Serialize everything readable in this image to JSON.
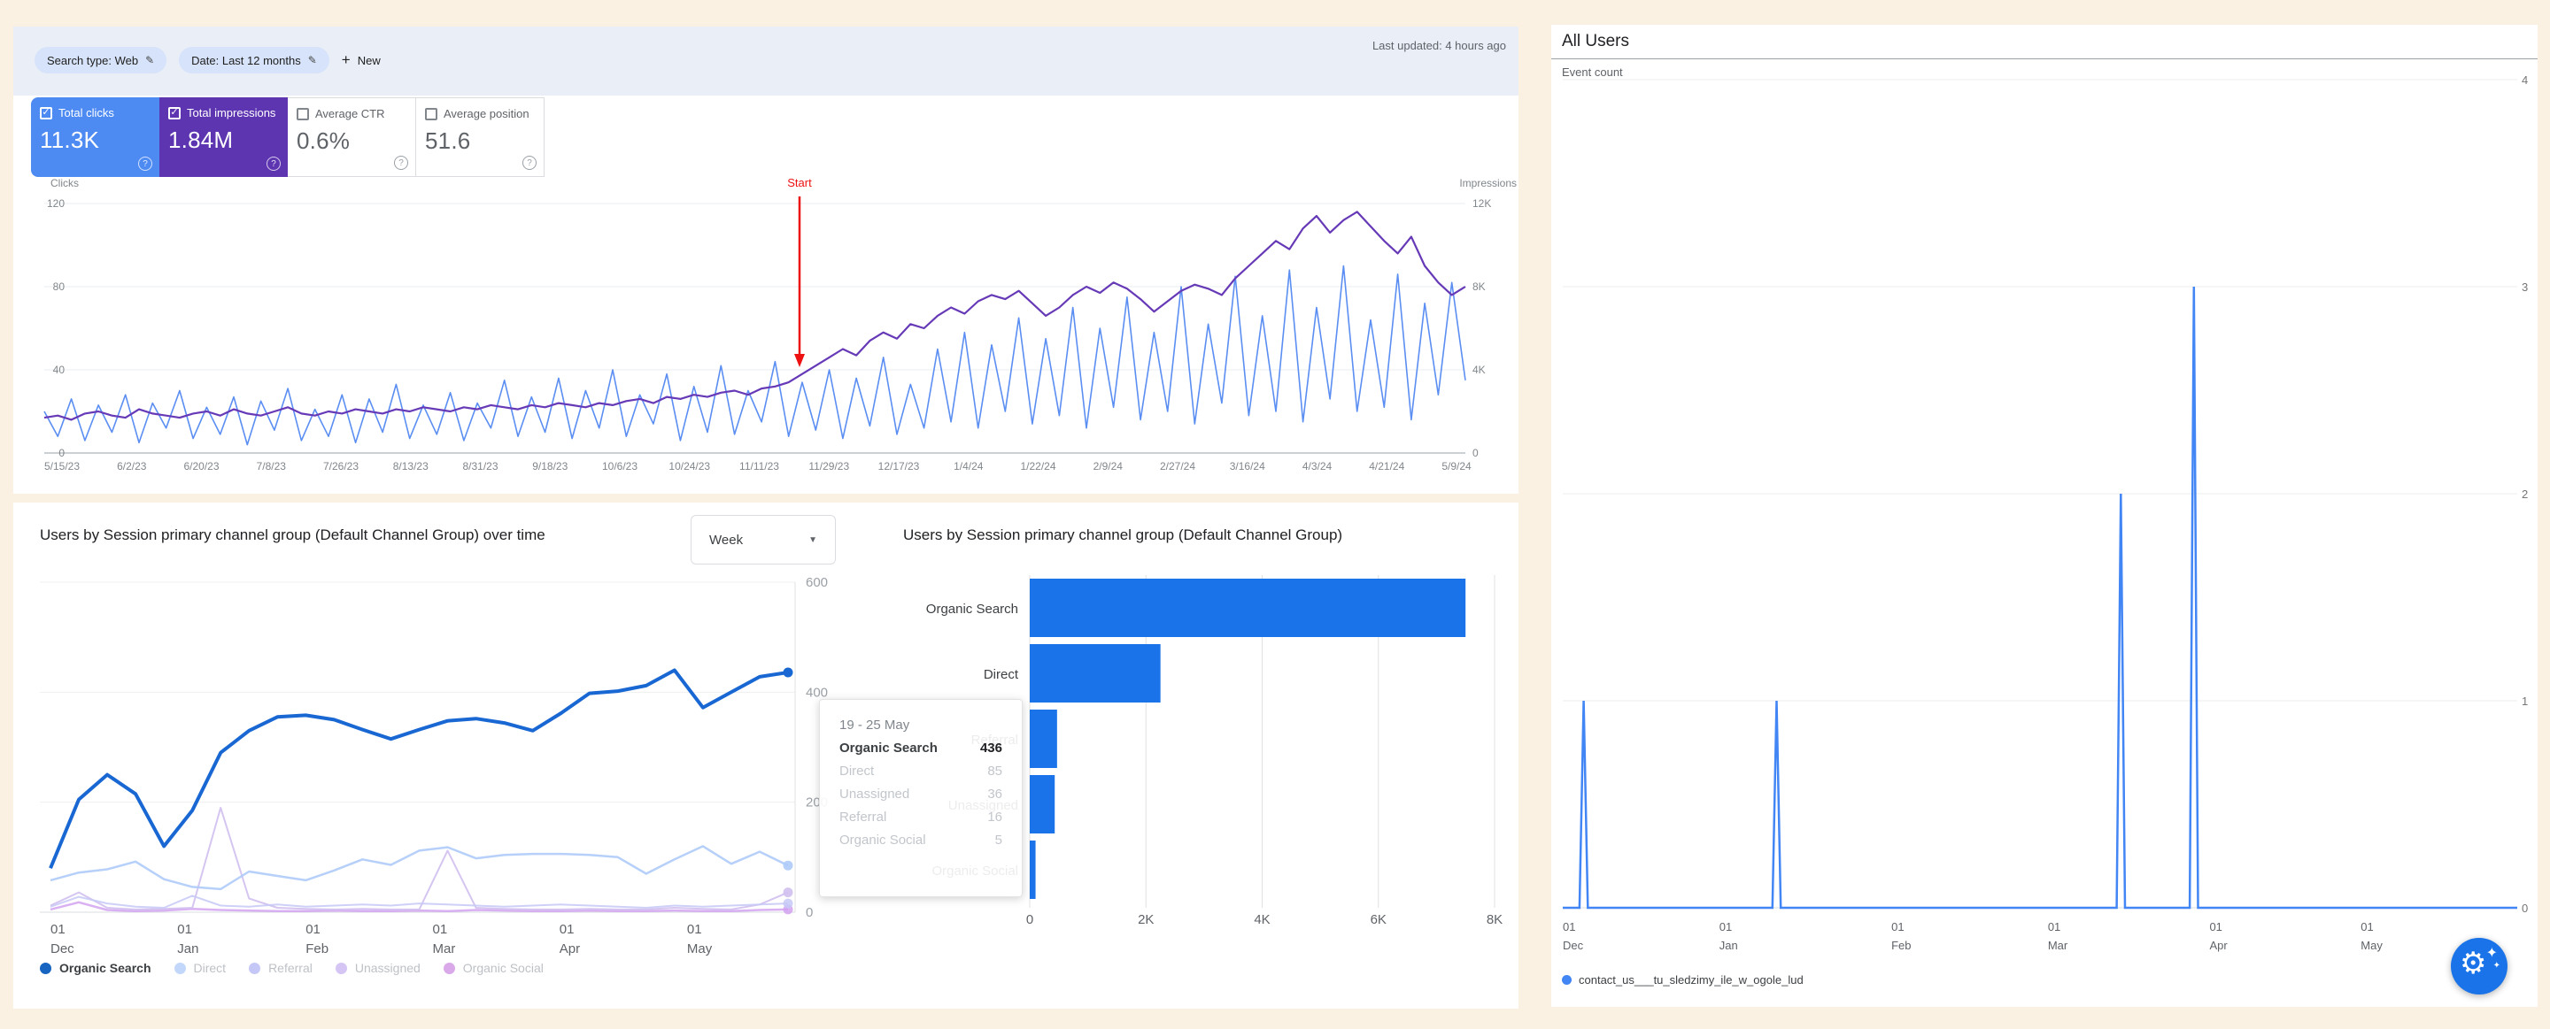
{
  "search_console": {
    "topbar": {
      "chips": [
        {
          "label": "Search type: Web"
        },
        {
          "label": "Date: Last 12 months"
        }
      ],
      "new_label": "New",
      "last_updated": "Last updated: 4 hours ago"
    },
    "cards": [
      {
        "label": "Total clicks",
        "value": "11.3K",
        "checked": true,
        "bg": "#4d8af2"
      },
      {
        "label": "Total impressions",
        "value": "1.84M",
        "checked": true,
        "bg": "#5e35b1"
      },
      {
        "label": "Average CTR",
        "value": "0.6%",
        "checked": false,
        "bg": "#ffffff"
      },
      {
        "label": "Average position",
        "value": "51.6",
        "checked": false,
        "bg": "#ffffff"
      }
    ],
    "chart_data": {
      "type": "line",
      "left_axis": {
        "label": "Clicks",
        "ticks": [
          "120",
          "80",
          "40",
          "0"
        ],
        "max": 120
      },
      "right_axis": {
        "label": "Impressions",
        "ticks": [
          "12K",
          "8K",
          "4K",
          "0"
        ],
        "max": 12
      },
      "x_labels": [
        "5/15/23",
        "6/2/23",
        "6/20/23",
        "7/8/23",
        "7/26/23",
        "8/13/23",
        "8/31/23",
        "9/18/23",
        "10/6/23",
        "10/24/23",
        "11/11/23",
        "11/29/23",
        "12/17/23",
        "1/4/24",
        "1/22/24",
        "2/9/24",
        "2/27/24",
        "3/16/24",
        "4/3/24",
        "4/21/24",
        "5/9/24"
      ],
      "annotation": {
        "text": "Start",
        "color": "#ee1111",
        "x": 888
      },
      "series": [
        {
          "name": "Total clicks",
          "axis": "left",
          "color": "#5b8ef2",
          "width": 1.6,
          "values": [
            20,
            8,
            26,
            6,
            23,
            10,
            28,
            5,
            24,
            12,
            30,
            7,
            22,
            9,
            27,
            4,
            25,
            11,
            31,
            6,
            21,
            8,
            28,
            5,
            26,
            10,
            33,
            7,
            23,
            9,
            29,
            6,
            24,
            12,
            35,
            8,
            27,
            10,
            36,
            7,
            30,
            12,
            40,
            8,
            28,
            14,
            38,
            6,
            32,
            10,
            42,
            9,
            30,
            15,
            44,
            8,
            34,
            11,
            40,
            7,
            36,
            13,
            46,
            9,
            33,
            12,
            50,
            15,
            58,
            12,
            52,
            20,
            65,
            14,
            55,
            18,
            70,
            12,
            60,
            22,
            75,
            16,
            58,
            20,
            80,
            14,
            62,
            24,
            85,
            18,
            66,
            20,
            88,
            15,
            70,
            26,
            90,
            20,
            64,
            22,
            86,
            16,
            72,
            28,
            82,
            35
          ]
        },
        {
          "name": "Total impressions",
          "axis": "right",
          "color": "#6639b7",
          "width": 2.2,
          "values": [
            1.7,
            1.8,
            1.6,
            1.9,
            2.0,
            1.8,
            1.7,
            2.1,
            1.9,
            1.8,
            1.7,
            1.9,
            2.0,
            1.8,
            2.1,
            1.9,
            1.8,
            2.0,
            2.2,
            1.9,
            1.8,
            2.0,
            1.9,
            2.1,
            2.0,
            1.9,
            2.1,
            2.0,
            2.2,
            2.1,
            2.0,
            2.2,
            2.1,
            2.3,
            2.2,
            2.1,
            2.3,
            2.2,
            2.4,
            2.3,
            2.2,
            2.4,
            2.3,
            2.5,
            2.6,
            2.4,
            2.7,
            2.6,
            2.8,
            2.7,
            2.9,
            3.0,
            2.8,
            3.1,
            3.2,
            3.4,
            3.8,
            4.2,
            4.6,
            5.0,
            4.7,
            5.4,
            5.8,
            5.5,
            6.2,
            6.0,
            6.6,
            7.0,
            6.7,
            7.3,
            7.6,
            7.4,
            7.8,
            7.2,
            6.6,
            7.0,
            7.6,
            8.0,
            7.7,
            8.2,
            7.9,
            7.4,
            6.8,
            7.3,
            7.8,
            8.1,
            7.9,
            7.6,
            8.4,
            9.0,
            9.6,
            10.2,
            9.8,
            10.8,
            11.4,
            10.6,
            11.2,
            11.6,
            10.9,
            10.2,
            9.6,
            10.4,
            9.0,
            8.2,
            7.6,
            8.0
          ]
        }
      ]
    }
  },
  "channels_panel": {
    "left_title": "Users by Session primary channel group (Default Channel Group) over time",
    "week_selector": {
      "value": "Week"
    },
    "right_title": "Users by Session primary channel group (Default Channel Group)",
    "line_chart_data": {
      "type": "line",
      "ylim": [
        0,
        600
      ],
      "y_ticks": [
        "600",
        "400",
        "200",
        "0"
      ],
      "x_ticks": [
        {
          "pos": 0.0,
          "day": "01",
          "month": "Dec"
        },
        {
          "pos": 0.172,
          "day": "01",
          "month": "Jan"
        },
        {
          "pos": 0.346,
          "day": "01",
          "month": "Feb"
        },
        {
          "pos": 0.518,
          "day": "01",
          "month": "Mar"
        },
        {
          "pos": 0.69,
          "day": "01",
          "month": "Apr"
        },
        {
          "pos": 0.863,
          "day": "01",
          "month": "May"
        }
      ],
      "series": [
        {
          "name": "Organic Search",
          "color": "#1967d2",
          "width": 4,
          "opacity": 1,
          "values": [
            80,
            205,
            250,
            215,
            120,
            185,
            290,
            330,
            355,
            358,
            350,
            332,
            315,
            332,
            348,
            352,
            344,
            330,
            362,
            398,
            402,
            412,
            440,
            372,
            400,
            428,
            436
          ]
        },
        {
          "name": "Direct",
          "color": "#aecbfa",
          "width": 2.5,
          "opacity": 0.9,
          "values": [
            58,
            72,
            78,
            92,
            60,
            46,
            42,
            74,
            66,
            58,
            76,
            96,
            86,
            112,
            118,
            98,
            104,
            106,
            106,
            104,
            100,
            70,
            96,
            120,
            88,
            110,
            85
          ]
        },
        {
          "name": "Referral",
          "color": "#c5c8f6",
          "width": 2,
          "opacity": 0.85,
          "values": [
            10,
            28,
            16,
            10,
            8,
            30,
            12,
            10,
            14,
            10,
            12,
            14,
            12,
            16,
            14,
            12,
            10,
            12,
            14,
            12,
            10,
            8,
            12,
            10,
            12,
            14,
            16
          ]
        },
        {
          "name": "Unassigned",
          "color": "#d0bff0",
          "width": 2,
          "opacity": 0.9,
          "values": [
            12,
            36,
            8,
            5,
            6,
            8,
            190,
            25,
            8,
            6,
            5,
            6,
            5,
            5,
            112,
            8,
            6,
            5,
            5,
            6,
            5,
            5,
            8,
            6,
            5,
            14,
            36
          ]
        },
        {
          "name": "Organic Social",
          "color": "#cf9ef0",
          "width": 2.5,
          "opacity": 0.8,
          "values": [
            5,
            18,
            4,
            2,
            3,
            6,
            4,
            3,
            2,
            2,
            3,
            2,
            2,
            3,
            2,
            4,
            3,
            2,
            2,
            3,
            2,
            2,
            3,
            2,
            2,
            4,
            5
          ]
        }
      ]
    },
    "bar_chart_data": {
      "type": "bar",
      "categories": [
        "Organic Search",
        "Direct",
        "Referral",
        "Unassigned",
        "Organic Social"
      ],
      "values": [
        7500,
        2250,
        470,
        430,
        100
      ],
      "bar_color": "#1a73e8",
      "xlim": [
        0,
        8000
      ],
      "x_ticks": [
        "0",
        "2K",
        "4K",
        "6K",
        "8K"
      ]
    },
    "tooltip": {
      "date_range": "19 - 25 May",
      "rows": [
        {
          "label": "Organic Search",
          "value": "436",
          "em": true
        },
        {
          "label": "Direct",
          "value": "85",
          "em": false
        },
        {
          "label": "Unassigned",
          "value": "36",
          "em": false
        },
        {
          "label": "Referral",
          "value": "16",
          "em": false
        },
        {
          "label": "Organic Social",
          "value": "5",
          "em": false
        }
      ]
    },
    "legend": [
      {
        "label": "Organic Search",
        "color": "#1765c0",
        "active": true
      },
      {
        "label": "Direct",
        "color": "#c3d7fa",
        "active": false
      },
      {
        "label": "Referral",
        "color": "#c5c8f6",
        "active": false
      },
      {
        "label": "Unassigned",
        "color": "#d5c5f5",
        "active": false
      },
      {
        "label": "Organic Social",
        "color": "#d9a9ea",
        "active": false
      }
    ]
  },
  "all_users_panel": {
    "title": "All Users",
    "subtitle": "Event count",
    "chart_data": {
      "type": "line",
      "line_color": "#4285f4",
      "ylim": [
        0,
        4
      ],
      "y_ticks": [
        "4",
        "3",
        "2",
        "1",
        "0"
      ],
      "xlim_days": [
        0,
        183
      ],
      "x_ticks": [
        {
          "day_offset": 0,
          "day": "01",
          "month": "Dec"
        },
        {
          "day_offset": 30,
          "day": "01",
          "month": "Jan"
        },
        {
          "day_offset": 63,
          "day": "01",
          "month": "Feb"
        },
        {
          "day_offset": 93,
          "day": "01",
          "month": "Mar"
        },
        {
          "day_offset": 124,
          "day": "01",
          "month": "Apr"
        },
        {
          "day_offset": 153,
          "day": "01",
          "month": "May"
        }
      ],
      "points": [
        [
          0,
          0
        ],
        [
          3.2,
          0
        ],
        [
          4,
          1
        ],
        [
          4.8,
          0
        ],
        [
          40.2,
          0
        ],
        [
          41,
          1
        ],
        [
          41.8,
          0
        ],
        [
          106.2,
          0
        ],
        [
          107,
          2
        ],
        [
          107.8,
          0
        ],
        [
          120.2,
          0
        ],
        [
          121,
          3
        ],
        [
          121.8,
          0
        ],
        [
          183,
          0
        ]
      ]
    },
    "legend": {
      "label": "contact_us___tu_sledzimy_ile_w_ogole_lud",
      "color": "#4285f4"
    },
    "fab_icon": "gear-sparkle-icon"
  }
}
